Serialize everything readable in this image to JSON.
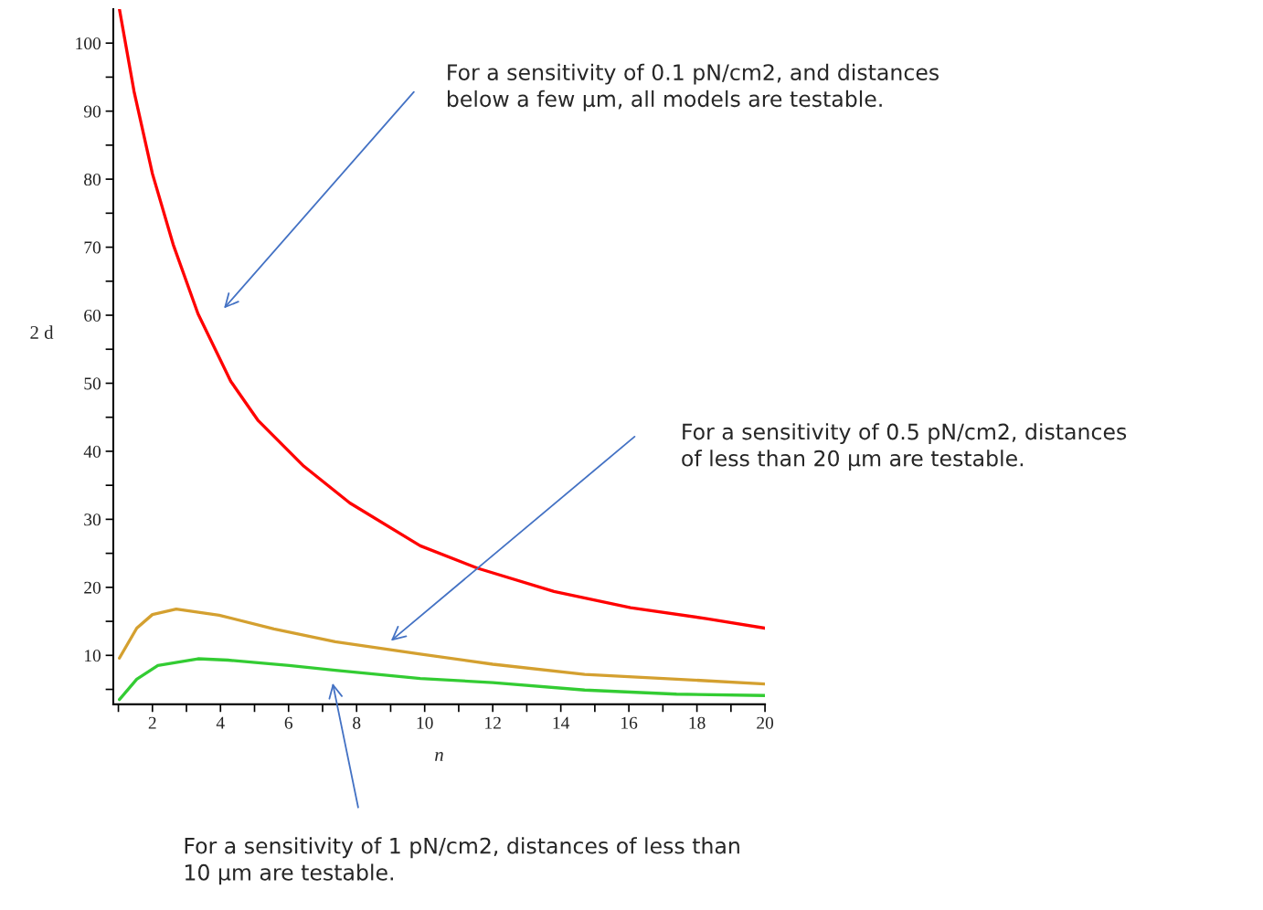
{
  "chart_data": {
    "type": "line",
    "xlabel": "n",
    "ylabel": "2 d",
    "xlim": [
      0.85,
      20
    ],
    "ylim": [
      2.8,
      105
    ],
    "xticks": [
      {
        "value": 1,
        "label": null
      },
      2,
      {
        "value": 3,
        "label": null
      },
      4,
      {
        "value": 5,
        "label": null
      },
      6,
      {
        "value": 7,
        "label": null
      },
      8,
      {
        "value": 9,
        "label": null
      },
      10,
      {
        "value": 11,
        "label": null
      },
      12,
      {
        "value": 13,
        "label": null
      },
      14,
      {
        "value": 15,
        "label": null
      },
      16,
      {
        "value": 17,
        "label": null
      },
      18,
      {
        "value": 19,
        "label": null
      },
      20
    ],
    "yticks": [
      {
        "value": 5,
        "label": null
      },
      10,
      {
        "value": 15,
        "label": null
      },
      20,
      {
        "value": 25,
        "label": null
      },
      30,
      {
        "value": 35,
        "label": null
      },
      40,
      {
        "value": 45,
        "label": null
      },
      50,
      {
        "value": 55,
        "label": null
      },
      60,
      {
        "value": 65,
        "label": null
      },
      70,
      {
        "value": 75,
        "label": null
      },
      80,
      {
        "value": 85,
        "label": null
      },
      90,
      {
        "value": 95,
        "label": null
      },
      100
    ],
    "grid": false,
    "series": [
      {
        "color": "#ff0000",
        "x": [
          1.03,
          1.46,
          2.0,
          2.61,
          3.34,
          4.3,
          5.11,
          6.45,
          7.8,
          9.87,
          11.56,
          13.8,
          16.05,
          18.28,
          20
        ],
        "values": [
          105,
          92.9,
          80.8,
          70.4,
          60.2,
          50.3,
          44.5,
          37.8,
          32.4,
          26.1,
          22.8,
          19.4,
          17.0,
          15.4,
          14.0
        ]
      },
      {
        "color": "#d4a030",
        "x": [
          1.03,
          1.54,
          2.0,
          2.7,
          3.96,
          5.57,
          7.37,
          9.87,
          12.0,
          14.7,
          17.4,
          20
        ],
        "values": [
          9.6,
          14.0,
          16.0,
          16.8,
          15.9,
          13.9,
          12.0,
          10.2,
          8.7,
          7.2,
          6.5,
          5.8
        ]
      },
      {
        "color": "#33cc33",
        "x": [
          1.03,
          1.54,
          2.16,
          3.34,
          4.22,
          6.02,
          7.37,
          9.87,
          12.0,
          14.7,
          17.4,
          20
        ],
        "values": [
          3.5,
          6.5,
          8.5,
          9.5,
          9.3,
          8.5,
          7.8,
          6.6,
          6.0,
          4.9,
          4.3,
          4.1
        ]
      }
    ],
    "annotations": [
      "For a sensitivity of 0.1 pN/cm2, and distances\nbelow a few µm, all models are testable.",
      "For a sensitivity of 0.5 pN/cm2, distances\nof less than 20 µm are testable.",
      "For a sensitivity of 1 pN/cm2, distances of less than\n10 µm are testable."
    ]
  }
}
